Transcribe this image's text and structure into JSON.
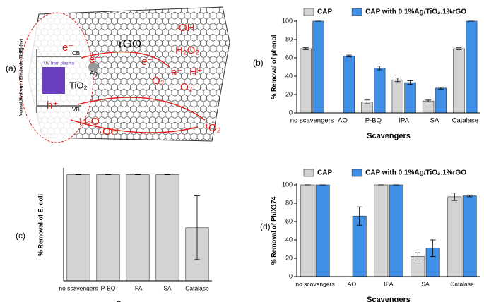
{
  "diagram": {
    "label": "(a)",
    "axis_label": "Normal Hydrogen Electrode (NHE) (ev)",
    "inset": "UV from plasma",
    "labels": [
      "CB",
      "VB",
      "TiO₂",
      "rGO",
      "Ag"
    ],
    "species": [
      "e⁻",
      "e⁻",
      "e⁻",
      "h⁺",
      "·OH",
      "H₂O₂",
      "e⁻",
      "H⁺",
      "O₂",
      "O₂⁻",
      "H₂O",
      "·OH",
      "¹O₂"
    ]
  },
  "chart_data": [
    {
      "type": "bar",
      "label": "(b)",
      "ylabel": "% Removal of phenol",
      "xlabel": "Scavengers",
      "categories": [
        "no scavengers",
        "AO",
        "P-BQ",
        "IPA",
        "SA",
        "Catalase"
      ],
      "series": [
        {
          "name": "CAP",
          "color": "#d3d3d3",
          "values": [
            70,
            null,
            12,
            36,
            13,
            70
          ],
          "errors": [
            1,
            null,
            2,
            2,
            1,
            1
          ]
        },
        {
          "name": "CAP with 0.1%Ag/TiO₂.1%rGO",
          "color": "#3f8fe6",
          "values": [
            100,
            62,
            49,
            33,
            27,
            100
          ],
          "errors": [
            0,
            1,
            2,
            2,
            1,
            0
          ]
        }
      ],
      "ylim": [
        0,
        100
      ],
      "yticks": [
        0,
        20,
        40,
        60,
        80,
        100
      ],
      "legend": "top"
    },
    {
      "type": "bar",
      "label": "(c)",
      "ylabel": "% Removal of E. coli",
      "xlabel": "Scavengers",
      "categories": [
        "no scavengers",
        "P-BQ",
        "IPA",
        "SA",
        "Catalase"
      ],
      "values": [
        100,
        100,
        100,
        100,
        50
      ],
      "errors": [
        0,
        0,
        0,
        0,
        30
      ],
      "color": "#d3d3d3",
      "ylim": [
        0,
        105
      ]
    },
    {
      "type": "bar",
      "label": "(d)",
      "ylabel": "% Removal of PhiX174",
      "xlabel": "Scavengers",
      "categories": [
        "no scavengers",
        "AO",
        "IPA",
        "SA",
        "Catalase"
      ],
      "series": [
        {
          "name": "CAP",
          "color": "#d3d3d3",
          "values": [
            100,
            null,
            100,
            22,
            87
          ],
          "errors": [
            0,
            null,
            0,
            4,
            4
          ]
        },
        {
          "name": "CAP with 0.1%Ag/TiO₂.1%rGO",
          "color": "#3f8fe6",
          "values": [
            100,
            66,
            100,
            31,
            88
          ],
          "errors": [
            0,
            10,
            0,
            9,
            1
          ]
        }
      ],
      "ylim": [
        0,
        100
      ],
      "yticks": [
        0,
        20,
        40,
        60,
        80,
        100
      ],
      "legend": "top"
    }
  ]
}
